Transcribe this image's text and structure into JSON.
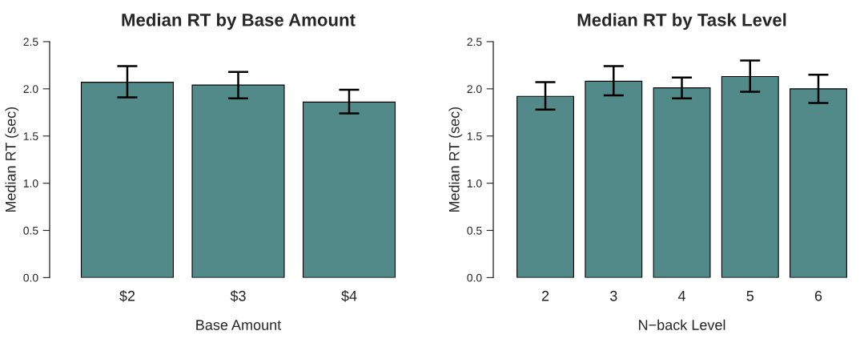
{
  "chart_data": [
    {
      "type": "bar",
      "title": "Median RT by Base Amount",
      "xlabel": "Base Amount",
      "ylabel": "Median RT (sec)",
      "categories": [
        "$2",
        "$3",
        "$4"
      ],
      "values": [
        2.07,
        2.04,
        1.86
      ],
      "errors": [
        [
          1.91,
          2.24
        ],
        [
          1.9,
          2.18
        ],
        [
          1.74,
          1.99
        ]
      ],
      "color": "#528a8a",
      "ylim": [
        0,
        2.5
      ],
      "yticks": [
        {
          "value": 0,
          "label": "0.0"
        },
        {
          "value": 0.5,
          "label": "0.5"
        },
        {
          "value": 1,
          "label": "1.0"
        },
        {
          "value": 1.5,
          "label": "1.5"
        },
        {
          "value": 2,
          "label": "2.0"
        },
        {
          "value": 2.5,
          "label": "2.5"
        }
      ]
    },
    {
      "type": "bar",
      "title": "Median RT by Task Level",
      "xlabel": "N−back Level",
      "ylabel": "Median RT (sec)",
      "categories": [
        "2",
        "3",
        "4",
        "5",
        "6"
      ],
      "values": [
        1.92,
        2.08,
        2.01,
        2.13,
        2.0
      ],
      "errors": [
        [
          1.78,
          2.07
        ],
        [
          1.93,
          2.24
        ],
        [
          1.9,
          2.12
        ],
        [
          1.97,
          2.3
        ],
        [
          1.85,
          2.15
        ]
      ],
      "color": "#528a8a",
      "ylim": [
        0,
        2.5
      ],
      "yticks": [
        {
          "value": 0,
          "label": "0.0"
        },
        {
          "value": 0.5,
          "label": "0.5"
        },
        {
          "value": 1,
          "label": "1.0"
        },
        {
          "value": 1.5,
          "label": "1.5"
        },
        {
          "value": 2,
          "label": "2.0"
        },
        {
          "value": 2.5,
          "label": "2.5"
        }
      ]
    }
  ]
}
